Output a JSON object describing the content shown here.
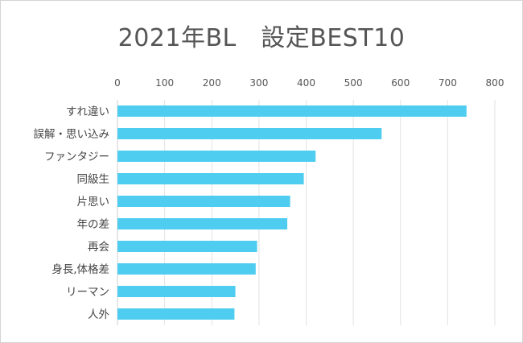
{
  "title": "2021年BL　設定BEST10",
  "chart_data": {
    "type": "bar",
    "orientation": "horizontal",
    "title": "2021年BL　設定BEST10",
    "xlabel": "",
    "ylabel": "",
    "xlim": [
      0,
      800
    ],
    "xticks": [
      0,
      100,
      200,
      300,
      400,
      500,
      600,
      700,
      800
    ],
    "tick_position": "top",
    "grid": true,
    "bar_color": "#4fcdf0",
    "categories": [
      "すれ違い",
      "誤解・思い込み",
      "ファンタジー",
      "同級生",
      "片思い",
      "年の差",
      "再会",
      "身長,体格差",
      "リーマン",
      "人外"
    ],
    "values": [
      740,
      560,
      420,
      395,
      366,
      360,
      296,
      293,
      250,
      248
    ]
  }
}
